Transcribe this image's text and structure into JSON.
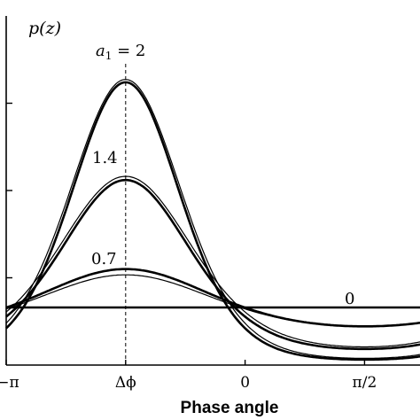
{
  "chart_data": {
    "type": "line",
    "ylabel": "p(z)",
    "xlabel": "Phase angle",
    "xlim": [
      -3.1416,
      2.3
    ],
    "ylim": [
      0,
      2.0
    ],
    "x_ticks": [
      {
        "value": -3.1416,
        "label": "−π"
      },
      {
        "value": -1.5708,
        "label": "Δϕ"
      },
      {
        "value": 0,
        "label": "0"
      },
      {
        "value": 1.5708,
        "label": "π/2"
      }
    ],
    "y_ticks": [
      0.5,
      1.0,
      1.5
    ],
    "reference_line": {
      "x": -1.5708,
      "style": "dashed"
    },
    "curve_labels": [
      {
        "text_prefix": "a",
        "subscript": "1",
        "text_suffix": " = 2",
        "series": "2"
      },
      {
        "text": "1.4",
        "series": "1.4"
      },
      {
        "text": "0.7",
        "series": "0.7"
      },
      {
        "text": "0",
        "series": "0"
      }
    ],
    "series": [
      {
        "name": "2",
        "kappa": 2,
        "style": "thick"
      },
      {
        "name": "2",
        "kappa": 2,
        "style": "thin"
      },
      {
        "name": "1.4",
        "kappa": 1.4,
        "style": "thick"
      },
      {
        "name": "1.4",
        "kappa": 1.4,
        "style": "thin"
      },
      {
        "name": "0.7",
        "kappa": 0.7,
        "style": "thick"
      },
      {
        "name": "0.7",
        "kappa": 0.7,
        "style": "thin"
      },
      {
        "name": "0",
        "kappa": 0,
        "style": "thick"
      }
    ],
    "colors": {
      "line": "#000000",
      "background": "#ffffff"
    }
  }
}
